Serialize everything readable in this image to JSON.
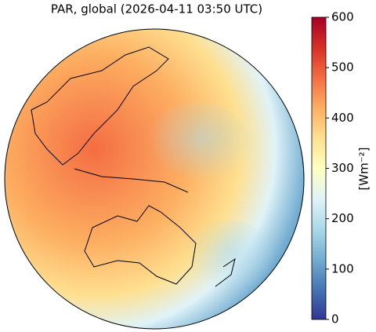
{
  "map": {
    "title": "PAR, global (2026-04-11 03:50 UTC)",
    "colorbar": {
      "label": "[Wm⁻²]",
      "lim": [
        0,
        600
      ],
      "ticks": [
        0,
        100,
        200,
        300,
        400,
        500,
        600
      ],
      "colormap": [
        "#313695",
        "#4575b4",
        "#74add1",
        "#abd9e9",
        "#e0f3f8",
        "#ffffbf",
        "#fee090",
        "#fdae61",
        "#f46d43",
        "#d73027",
        "#a50026"
      ]
    }
  }
}
